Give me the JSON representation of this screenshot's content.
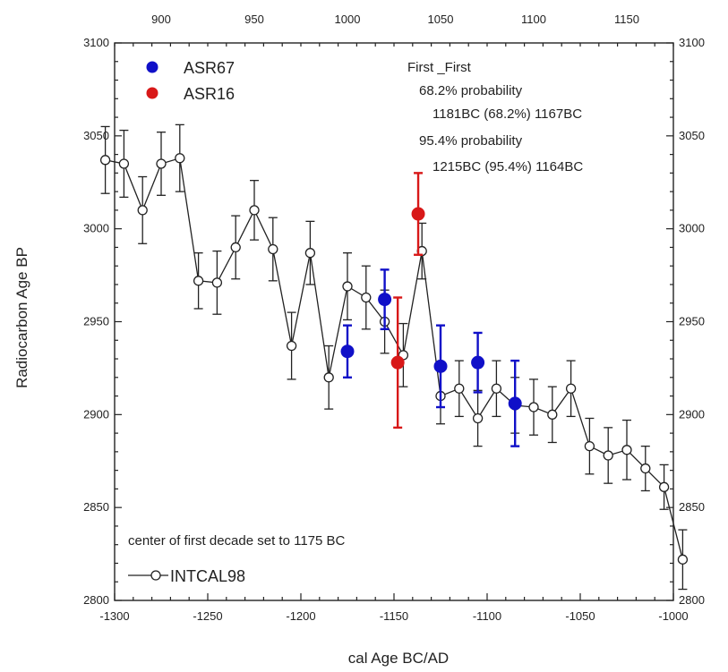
{
  "chart_data": {
    "type": "scatter",
    "xlabel": "cal Age BC/AD",
    "ylabel": "Radiocarbon Age BP",
    "xlim": [
      -1300,
      -1000
    ],
    "ylim": [
      2800,
      3100
    ],
    "x_ticks": [
      -1300,
      -1250,
      -1200,
      -1150,
      -1100,
      -1050,
      -1000
    ],
    "x_tick_labels": [
      "-1300",
      "-1250",
      "-1200",
      "-1150",
      "-1100",
      "-1050",
      "-1000"
    ],
    "top_ticks": [
      900,
      950,
      1000,
      1050,
      1100,
      1150
    ],
    "top_tick_labels": [
      "900",
      "950",
      "1000",
      "1050",
      "1100",
      "1150"
    ],
    "top_offset": 2175,
    "y_ticks": [
      2800,
      2850,
      2900,
      2950,
      3000,
      3050,
      3100
    ],
    "y_tick_labels": [
      "2800",
      "2850",
      "2900",
      "2950",
      "3000",
      "3050",
      "3100"
    ],
    "grid": false,
    "annotation_lines": [
      "First _First",
      "68.2% probability",
      "1181BC (68.2%) 1167BC",
      "95.4% probability",
      "1215BC (95.4%) 1164BC"
    ],
    "note": "center of first decade set to 1175 BC",
    "series": [
      {
        "name": "INTCAL98",
        "color": "#222222",
        "marker": "open-circle",
        "points": [
          {
            "x": -1305,
            "y": 3037,
            "err": 18
          },
          {
            "x": -1295,
            "y": 3035,
            "err": 18
          },
          {
            "x": -1285,
            "y": 3010,
            "err": 18
          },
          {
            "x": -1275,
            "y": 3035,
            "err": 17
          },
          {
            "x": -1265,
            "y": 3038,
            "err": 18
          },
          {
            "x": -1255,
            "y": 2972,
            "err": 15
          },
          {
            "x": -1245,
            "y": 2971,
            "err": 17
          },
          {
            "x": -1235,
            "y": 2990,
            "err": 17
          },
          {
            "x": -1225,
            "y": 3010,
            "err": 16
          },
          {
            "x": -1215,
            "y": 2989,
            "err": 17
          },
          {
            "x": -1205,
            "y": 2937,
            "err": 18
          },
          {
            "x": -1195,
            "y": 2987,
            "err": 17
          },
          {
            "x": -1185,
            "y": 2920,
            "err": 17
          },
          {
            "x": -1175,
            "y": 2969,
            "err": 18
          },
          {
            "x": -1165,
            "y": 2963,
            "err": 17
          },
          {
            "x": -1155,
            "y": 2950,
            "err": 17
          },
          {
            "x": -1145,
            "y": 2932,
            "err": 17
          },
          {
            "x": -1135,
            "y": 2988,
            "err": 15
          },
          {
            "x": -1125,
            "y": 2910,
            "err": 15
          },
          {
            "x": -1115,
            "y": 2914,
            "err": 15
          },
          {
            "x": -1105,
            "y": 2898,
            "err": 15
          },
          {
            "x": -1095,
            "y": 2914,
            "err": 15
          },
          {
            "x": -1085,
            "y": 2905,
            "err": 15
          },
          {
            "x": -1075,
            "y": 2904,
            "err": 15
          },
          {
            "x": -1065,
            "y": 2900,
            "err": 15
          },
          {
            "x": -1055,
            "y": 2914,
            "err": 15
          },
          {
            "x": -1045,
            "y": 2883,
            "err": 15
          },
          {
            "x": -1035,
            "y": 2878,
            "err": 15
          },
          {
            "x": -1025,
            "y": 2881,
            "err": 16
          },
          {
            "x": -1015,
            "y": 2871,
            "err": 12
          },
          {
            "x": -1005,
            "y": 2861,
            "err": 12
          },
          {
            "x": -995,
            "y": 2822,
            "err": 16
          }
        ]
      },
      {
        "name": "ASR67",
        "color": "#1010c8",
        "marker": "filled-circle",
        "points": [
          {
            "x": -1175,
            "y": 2934,
            "err": 14
          },
          {
            "x": -1155,
            "y": 2962,
            "err": 16
          },
          {
            "x": -1125,
            "y": 2926,
            "err": 22
          },
          {
            "x": -1105,
            "y": 2928,
            "err": 16
          },
          {
            "x": -1085,
            "y": 2906,
            "err": 23
          }
        ]
      },
      {
        "name": "ASR16",
        "color": "#d81818",
        "marker": "filled-circle",
        "points": [
          {
            "x": -1148,
            "y": 2928,
            "err": 35
          },
          {
            "x": -1137,
            "y": 3008,
            "err": 22
          }
        ]
      }
    ]
  }
}
